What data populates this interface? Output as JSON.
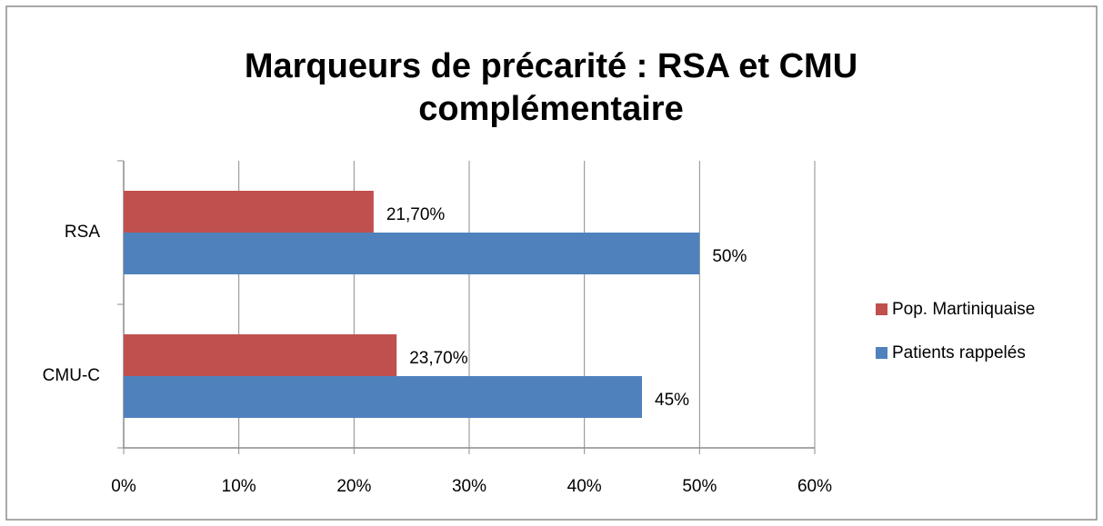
{
  "chart_data": {
    "type": "hbar",
    "title": [
      "Marqueurs de précarité : RSA et CMU",
      "complémentaire"
    ],
    "categories": [
      "RSA",
      "CMU-C"
    ],
    "series": [
      {
        "name": "Pop. Martiniquaise",
        "color": "#c0504d",
        "values": [
          21.7,
          23.7
        ],
        "value_labels": [
          "21,70%",
          "23,70%"
        ]
      },
      {
        "name": "Patients rappelés",
        "color": "#4f81bd",
        "values": [
          50,
          45
        ],
        "value_labels": [
          "50%",
          "45%"
        ]
      }
    ],
    "xlim": [
      0,
      60
    ],
    "xticks": [
      {
        "value": 0,
        "label": "0%"
      },
      {
        "value": 10,
        "label": "10%"
      },
      {
        "value": 20,
        "label": "20%"
      },
      {
        "value": 30,
        "label": "30%"
      },
      {
        "value": 40,
        "label": "40%"
      },
      {
        "value": 50,
        "label": "50%"
      },
      {
        "value": 60,
        "label": "60%"
      }
    ],
    "grid": true,
    "legend": "right"
  }
}
